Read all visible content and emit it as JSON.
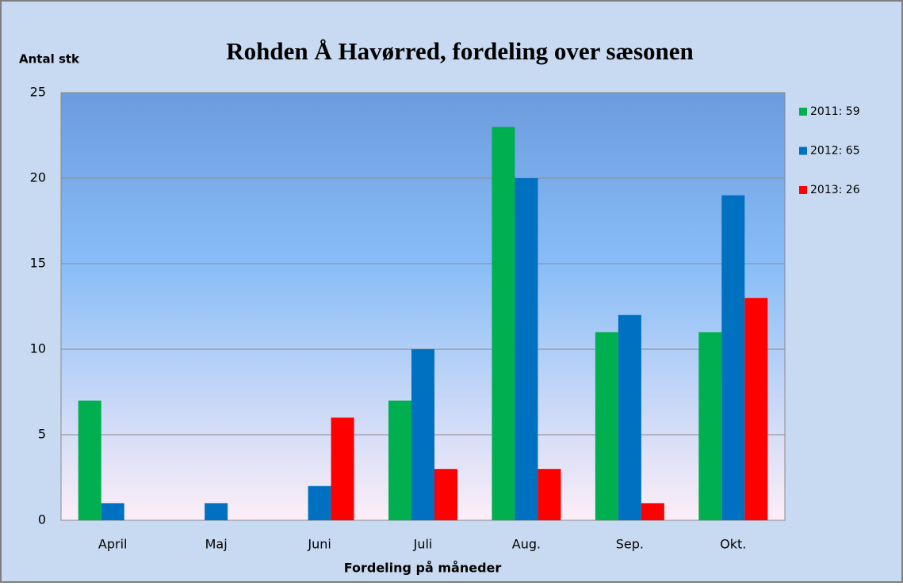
{
  "chart_data": {
    "type": "bar",
    "title": "Rohden Å Havørred, fordeling over sæsonen",
    "y_label": "Antal stk",
    "x_label": "Fordeling  på måneder",
    "categories": [
      "April",
      "Maj",
      "Juni",
      "Juli",
      "Aug.",
      "Sep.",
      "Okt."
    ],
    "series": [
      {
        "name": "2011: 59",
        "color": "#00b050",
        "values": [
          7,
          0,
          0,
          7,
          23,
          11,
          11
        ]
      },
      {
        "name": "2012: 65",
        "color": "#0070c0",
        "values": [
          1,
          1,
          2,
          10,
          20,
          12,
          19
        ]
      },
      {
        "name": "2013: 26",
        "color": "#ff0000",
        "values": [
          0,
          0,
          6,
          3,
          3,
          1,
          13
        ]
      }
    ],
    "ylim": [
      0,
      25
    ],
    "yticks": [
      0,
      5,
      10,
      15,
      20,
      25
    ],
    "grid": true,
    "legend": "right"
  }
}
